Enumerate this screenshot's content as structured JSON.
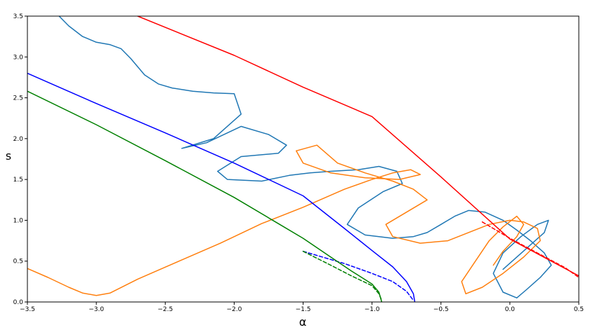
{
  "chart_data": {
    "type": "line",
    "title": "",
    "xlabel": "α",
    "ylabel": "s",
    "xlim": [
      -3.5,
      0.5
    ],
    "ylim": [
      0.0,
      3.5
    ],
    "xticks": [
      -3.5,
      -3.0,
      -2.5,
      -2.0,
      -1.5,
      -1.0,
      -0.5,
      0.0,
      0.5
    ],
    "xtick_labels": [
      "−3.5",
      "−3.0",
      "−2.5",
      "−2.0",
      "−1.5",
      "−1.0",
      "−0.5",
      "0.0",
      "0.5"
    ],
    "yticks": [
      0.0,
      0.5,
      1.0,
      1.5,
      2.0,
      2.5,
      3.0,
      3.5
    ],
    "ytick_labels": [
      "0.0",
      "0.5",
      "1.0",
      "1.5",
      "2.0",
      "2.5",
      "3.0",
      "3.5"
    ],
    "grid": false,
    "legend": "none",
    "series": [
      {
        "color": "#1f77b4",
        "style": "solid",
        "x": [
          -3.27,
          -3.2,
          -3.1,
          -3.0,
          -2.9,
          -2.82,
          -2.75,
          -2.65,
          -2.55,
          -2.45,
          -2.3,
          -2.15,
          -2.0,
          -1.95,
          -2.15,
          -2.38,
          -2.2,
          -1.95,
          -1.75,
          -1.62,
          -1.68,
          -1.95,
          -2.12,
          -2.05,
          -1.8,
          -1.6,
          -1.45,
          -1.3,
          -1.1,
          -0.95,
          -0.82,
          -0.78,
          -0.92,
          -1.1,
          -1.18,
          -1.05,
          -0.85,
          -0.7,
          -0.6,
          -0.5,
          -0.4,
          -0.3,
          -0.18,
          -0.05,
          0.05,
          0.15,
          0.25,
          0.3,
          0.22,
          0.12,
          0.05,
          -0.05,
          -0.12,
          -0.05,
          0.08,
          0.2,
          0.28,
          0.25,
          0.15,
          0.05,
          -0.05
        ],
        "y": [
          3.5,
          3.38,
          3.25,
          3.18,
          3.15,
          3.1,
          2.98,
          2.78,
          2.67,
          2.62,
          2.58,
          2.56,
          2.55,
          2.3,
          2.0,
          1.88,
          1.95,
          2.15,
          2.05,
          1.92,
          1.82,
          1.78,
          1.6,
          1.5,
          1.48,
          1.55,
          1.58,
          1.6,
          1.62,
          1.66,
          1.6,
          1.45,
          1.35,
          1.15,
          0.95,
          0.82,
          0.78,
          0.8,
          0.85,
          0.95,
          1.05,
          1.12,
          1.1,
          1.0,
          0.88,
          0.75,
          0.6,
          0.45,
          0.3,
          0.15,
          0.05,
          0.12,
          0.35,
          0.6,
          0.8,
          0.95,
          1.0,
          0.85,
          0.7,
          0.55,
          0.4
        ]
      },
      {
        "color": "#ff7f0e",
        "style": "solid",
        "x": [
          -3.5,
          -3.35,
          -3.2,
          -3.1,
          -3.0,
          -2.9,
          -2.7,
          -2.4,
          -2.1,
          -1.8,
          -1.5,
          -1.2,
          -1.0,
          -0.85,
          -0.72,
          -0.65,
          -0.8,
          -1.05,
          -1.3,
          -1.5,
          -1.55,
          -1.4,
          -1.25,
          -1.05,
          -0.85,
          -0.7,
          -0.6,
          -0.75,
          -0.9,
          -0.85,
          -0.65,
          -0.45,
          -0.3,
          -0.15,
          0.0,
          0.1,
          0.2,
          0.22,
          0.1,
          -0.05,
          -0.2,
          -0.32,
          -0.35,
          -0.25,
          -0.15,
          -0.05,
          0.05,
          0.1,
          0.05,
          -0.05,
          -0.12
        ],
        "y": [
          0.41,
          0.3,
          0.18,
          0.11,
          0.08,
          0.11,
          0.28,
          0.5,
          0.72,
          0.96,
          1.16,
          1.38,
          1.5,
          1.58,
          1.62,
          1.56,
          1.5,
          1.52,
          1.58,
          1.7,
          1.85,
          1.92,
          1.7,
          1.58,
          1.48,
          1.38,
          1.25,
          1.1,
          0.95,
          0.8,
          0.72,
          0.75,
          0.85,
          0.95,
          1.0,
          0.98,
          0.9,
          0.75,
          0.55,
          0.35,
          0.18,
          0.1,
          0.25,
          0.5,
          0.75,
          0.92,
          1.05,
          0.95,
          0.8,
          0.62,
          0.45
        ]
      },
      {
        "color": "#ff0000",
        "style": "solid",
        "x": [
          -2.7,
          -2.0,
          -1.5,
          -1.0,
          -0.5,
          0.0,
          0.5
        ],
        "y": [
          3.5,
          3.02,
          2.63,
          2.27,
          1.53,
          0.77,
          0.32
        ]
      },
      {
        "color": "#ff0000",
        "style": "dashed",
        "x": [
          -0.2,
          0.0,
          0.2,
          0.4,
          0.5
        ],
        "y": [
          0.98,
          0.78,
          0.6,
          0.42,
          0.3
        ]
      },
      {
        "color": "#0000ff",
        "style": "solid",
        "x": [
          -3.5,
          -3.0,
          -2.5,
          -2.0,
          -1.5,
          -1.2,
          -1.0,
          -0.85,
          -0.75,
          -0.7,
          -0.69
        ],
        "y": [
          2.8,
          2.43,
          2.07,
          1.7,
          1.3,
          0.9,
          0.63,
          0.43,
          0.25,
          0.1,
          0.0
        ]
      },
      {
        "color": "#0000ff",
        "style": "dashed",
        "x": [
          -1.5,
          -1.2,
          -1.0,
          -0.85,
          -0.75,
          -0.7
        ],
        "y": [
          0.62,
          0.47,
          0.35,
          0.25,
          0.13,
          0.02
        ]
      },
      {
        "color": "#008000",
        "style": "solid",
        "x": [
          -3.5,
          -3.0,
          -2.5,
          -2.0,
          -1.7,
          -1.5,
          -1.3,
          -1.15,
          -1.0,
          -0.95,
          -0.93
        ],
        "y": [
          2.58,
          2.17,
          1.73,
          1.28,
          0.98,
          0.78,
          0.55,
          0.38,
          0.22,
          0.12,
          0.0
        ]
      },
      {
        "color": "#008000",
        "style": "dashed",
        "x": [
          -1.5,
          -1.3,
          -1.15,
          -1.0,
          -0.95,
          -0.93
        ],
        "y": [
          0.62,
          0.45,
          0.32,
          0.2,
          0.1,
          0.02
        ]
      }
    ]
  }
}
